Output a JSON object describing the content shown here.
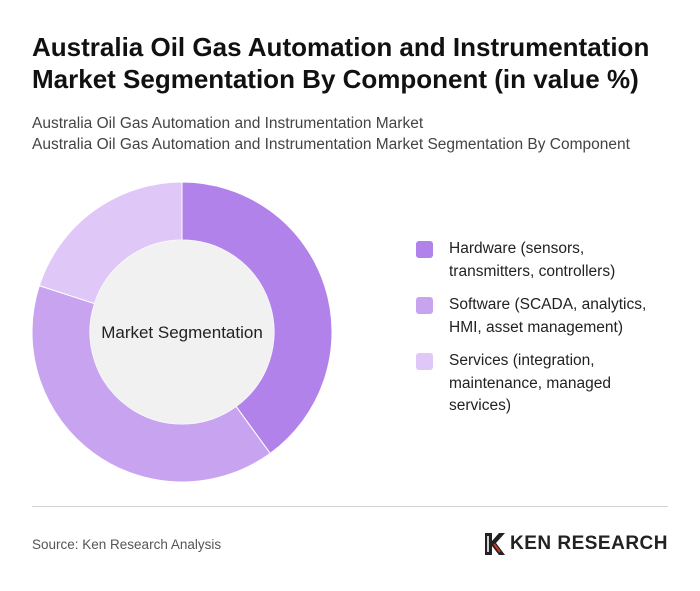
{
  "title": "Australia Oil Gas Automation and Instrumentation Market Segmentation By Component (in value %)",
  "subtitle_line1": "Australia Oil Gas Automation and Instrumentation Market",
  "subtitle_line2": "Australia Oil Gas Automation and Instrumentation Market Segmentation By Component",
  "chart_data": {
    "type": "pie",
    "variant": "donut",
    "center_label": "Market Segmentation",
    "categories": [
      "Hardware (sensors, transmitters, controllers)",
      "Software (SCADA, analytics, HMI, asset management)",
      "Services (integration, maintenance, managed services)"
    ],
    "values": [
      40,
      40,
      20
    ],
    "colors": [
      "#b182ea",
      "#c8a4f0",
      "#dfc7f8"
    ],
    "legend_position": "right"
  },
  "legend": {
    "items": [
      {
        "label": "Hardware (sensors, transmitters, controllers)",
        "color": "#b182ea"
      },
      {
        "label": "Software (SCADA, analytics, HMI, asset management)",
        "color": "#c8a4f0"
      },
      {
        "label": "Services (integration, maintenance, managed services)",
        "color": "#dfc7f8"
      }
    ]
  },
  "footer": {
    "source": "Source: Ken Research Analysis",
    "brand": "KEN RESEARCH",
    "brand_icon": "ken-research-logo-icon"
  }
}
